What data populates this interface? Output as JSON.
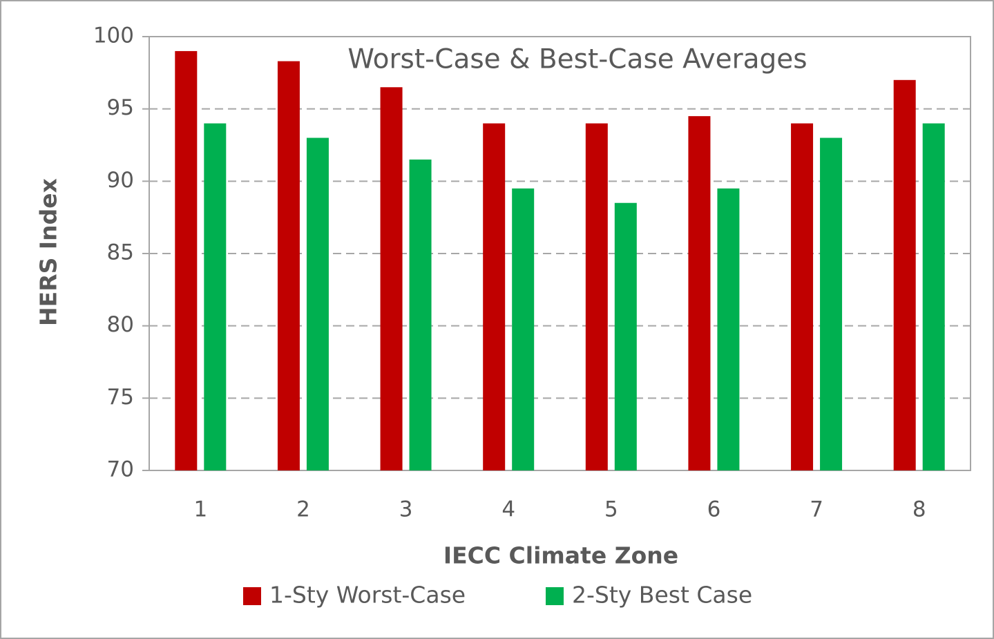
{
  "chart_data": {
    "type": "bar",
    "title": "Worst-Case & Best-Case Averages",
    "x_label": "IECC Climate Zone",
    "y_label": "HERS Index",
    "categories": [
      "1",
      "2",
      "3",
      "4",
      "5",
      "6",
      "7",
      "8"
    ],
    "series": [
      {
        "name": "1-Sty Worst-Case",
        "color": "#c00000",
        "values": [
          99,
          98.3,
          96.5,
          94,
          94,
          94.5,
          94,
          97
        ]
      },
      {
        "name": "2-Sty Best Case",
        "color": "#00b050",
        "values": [
          94,
          93,
          91.5,
          89.5,
          88.5,
          89.5,
          93,
          94
        ]
      }
    ],
    "ylim": [
      70,
      100
    ],
    "yticks": [
      70,
      75,
      80,
      85,
      90,
      95,
      100
    ],
    "grid": true,
    "legend": "bottom"
  }
}
